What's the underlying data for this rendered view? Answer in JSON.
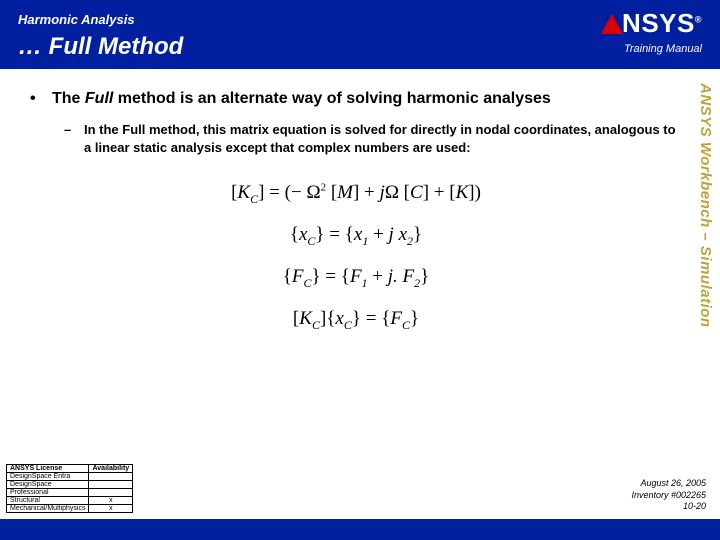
{
  "header": {
    "topic": "Harmonic Analysis",
    "title": "… Full Method",
    "logo_text": "NSYS",
    "manual_label": "Training Manual"
  },
  "side_watermark": "ANSYS Workbench – Simulation",
  "bullet": {
    "marker": "•",
    "prefix": "The ",
    "emph": "Full",
    "rest": " method is an alternate way of solving harmonic analyses"
  },
  "subbullet": {
    "marker": "–",
    "text": "In the Full method, this matrix equation is solved for directly in nodal coordinates, analogous to a linear static analysis except that complex numbers are used:"
  },
  "equations": {
    "eq1": "[K_C] = (− Ω² [M] + jΩ [C] + [K])",
    "eq2": "{x_C} = {x₁ + j x₂}",
    "eq3": "{F_C} = {F₁ + j F₂}",
    "eq4": "[K_C]{x_C} = {F_C}"
  },
  "footer_table": {
    "headers": [
      "ANSYS License",
      "Availability"
    ],
    "rows": [
      [
        "DesignSpace Entra",
        ""
      ],
      [
        "DesignSpace",
        ""
      ],
      [
        "Professional",
        ""
      ],
      [
        "Structural",
        "x"
      ],
      [
        "Mechanical/Multiphysics",
        "x"
      ]
    ]
  },
  "footer_meta": {
    "date": "August 26, 2005",
    "inventory": "Inventory #002265",
    "page": "10-20"
  }
}
